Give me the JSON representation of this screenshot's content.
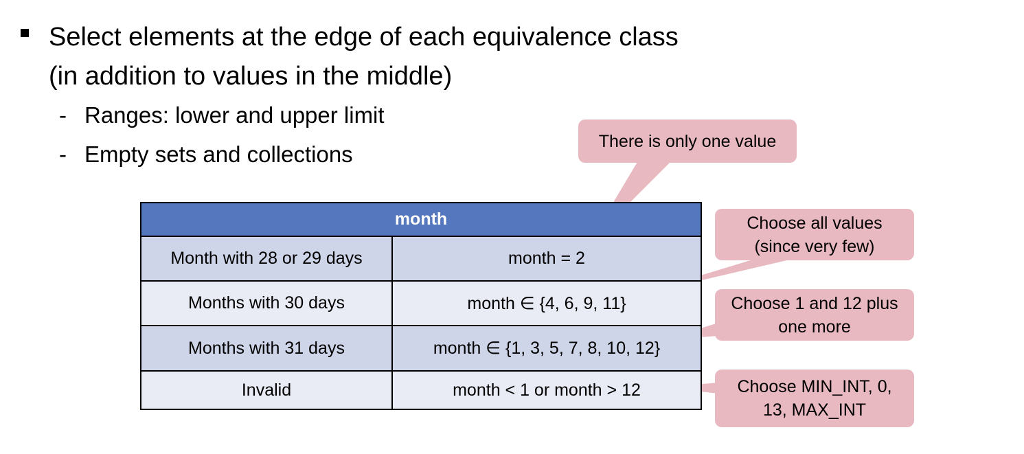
{
  "bullet": {
    "line1": "Select elements at the edge of each equivalence class",
    "line2": "(in addition to values in the middle)"
  },
  "sub_items": [
    {
      "dash": "-",
      "text": "Ranges: lower and upper limit"
    },
    {
      "dash": "-",
      "text": "Empty sets and collections"
    }
  ],
  "table": {
    "header": "month",
    "rows": [
      {
        "label": "Month with 28 or 29 days",
        "value": "month = 2"
      },
      {
        "label": "Months with 30 days",
        "value": "month ∈ {4, 6, 9, 11}"
      },
      {
        "label": "Months with 31 days",
        "value": "month ∈ {1, 3, 5, 7, 8, 10, 12}"
      },
      {
        "label": "Invalid",
        "value": "month < 1 or month > 12"
      }
    ]
  },
  "callouts": [
    {
      "line1": "There is only one value",
      "line2": ""
    },
    {
      "line1": "Choose all values",
      "line2": "(since very few)"
    },
    {
      "line1": "Choose 1 and 12 plus",
      "line2": "one more"
    },
    {
      "line1": "Choose MIN_INT, 0,",
      "line2": "13, MAX_INT"
    }
  ],
  "colors": {
    "table_header": "#5577bd",
    "row_dark": "#cfd5e8",
    "row_light": "#e9ecf5",
    "callout_fill": "#e8b9c0"
  }
}
